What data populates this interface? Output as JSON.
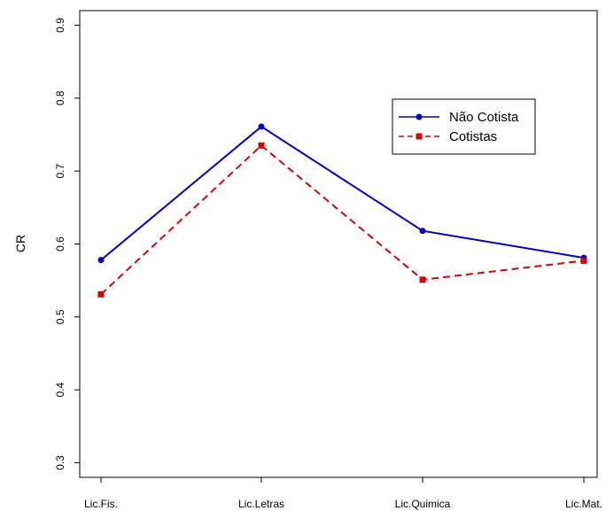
{
  "chart_data": {
    "type": "line",
    "categories": [
      "Lic.Fis.",
      "Lic.Letras",
      "Lic.Quimica",
      "Lic.Mat."
    ],
    "series": [
      {
        "name": "Não Cotista",
        "values": [
          0.578,
          0.761,
          0.618,
          0.581
        ],
        "color": "#0000CC",
        "line_style": "solid",
        "marker": "circle"
      },
      {
        "name": "Cotistas",
        "values": [
          0.531,
          0.735,
          0.551,
          0.577
        ],
        "color": "#DD0000",
        "line_style": "dashed",
        "marker": "square"
      }
    ],
    "ylabel": "CR",
    "xlabel": "",
    "ylim": [
      0.28,
      0.92
    ],
    "y_ticks": [
      "0.3",
      "0.4",
      "0.5",
      "0.6",
      "0.7",
      "0.8",
      "0.9"
    ],
    "grid": false,
    "legend_position": "top-right"
  }
}
